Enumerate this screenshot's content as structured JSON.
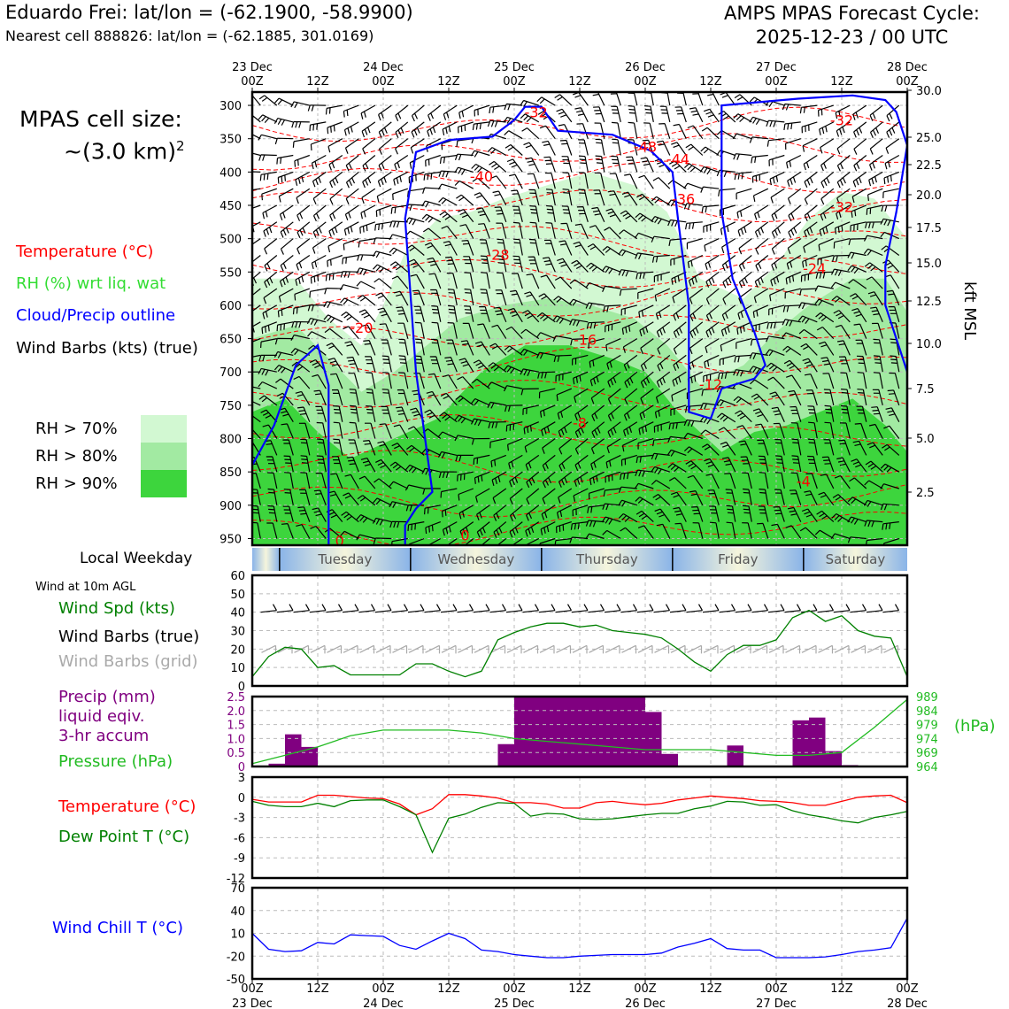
{
  "header": {
    "title_left": "Eduardo Frei: lat/lon = (-62.1900, -58.9900)",
    "subtitle_left": "Nearest cell 888826: lat/lon = (-62.1885, 301.0169)",
    "title_right_line1": "AMPS MPAS Forecast Cycle:",
    "title_right_line2": "2025-12-23 / 00 UTC",
    "cell_size_line1": "MPAS cell size:",
    "cell_size_line2": "~(3.0 km)",
    "cell_size_sup": "2"
  },
  "legend": {
    "temperature": "Temperature (°C)",
    "rh": "RH (%) wrt liq. wat",
    "cloud": "Cloud/Precip outline",
    "wind": "Wind Barbs (kts) (true)",
    "rh70": "RH > 70%",
    "rh80": "RH > 80%",
    "rh90": "RH > 90%"
  },
  "colors": {
    "rh70": "#d2f8d2",
    "rh80": "#a2eaa2",
    "rh90": "#3dd53d",
    "temperature": "#ff0000",
    "dewpoint": "#008000",
    "cloud": "#0000ff",
    "precip": "#800080",
    "pressure": "#22bb22",
    "windspeed": "#008000",
    "windchill": "#0000ff",
    "grid_barb": "#aaaaaa"
  },
  "axes": {
    "top_ticks": [
      {
        "hour": 0,
        "l1": "23 Dec",
        "l2": "00Z"
      },
      {
        "hour": 12,
        "l1": "",
        "l2": "12Z"
      },
      {
        "hour": 24,
        "l1": "24 Dec",
        "l2": "00Z"
      },
      {
        "hour": 36,
        "l1": "",
        "l2": "12Z"
      },
      {
        "hour": 48,
        "l1": "25 Dec",
        "l2": "00Z"
      },
      {
        "hour": 60,
        "l1": "",
        "l2": "12Z"
      },
      {
        "hour": 72,
        "l1": "26 Dec",
        "l2": "00Z"
      },
      {
        "hour": 84,
        "l1": "",
        "l2": "12Z"
      },
      {
        "hour": 96,
        "l1": "27 Dec",
        "l2": "00Z"
      },
      {
        "hour": 108,
        "l1": "",
        "l2": "12Z"
      },
      {
        "hour": 120,
        "l1": "28 Dec",
        "l2": "00Z"
      }
    ],
    "pressure_ticks": [
      "300",
      "350",
      "400",
      "450",
      "500",
      "550",
      "600",
      "650",
      "700",
      "750",
      "800",
      "850",
      "900",
      "950"
    ],
    "kft_ticks": [
      "30.0",
      "25.0",
      "22.5",
      "20.0",
      "17.5",
      "15.0",
      "12.5",
      "10.0",
      "7.5",
      "5.0",
      "2.5"
    ],
    "kft_label": "kft MSL"
  },
  "weekday": {
    "title": "Local Weekday",
    "days": [
      "Tuesday",
      "Wednesday",
      "Thursday",
      "Friday",
      "Saturday"
    ]
  },
  "wind_panel": {
    "title": "Wind at 10m AGL",
    "label_speed": "Wind Spd (kts)",
    "label_barbs_true": "Wind Barbs (true)",
    "label_barbs_grid": "Wind Barbs (grid)",
    "yticks": [
      "0",
      "10",
      "20",
      "30",
      "40",
      "50",
      "60"
    ]
  },
  "precip_panel": {
    "label1": "Precip (mm)",
    "label2": "liquid eqiv.",
    "label3": "3-hr accum",
    "label_pressure": "Pressure (hPa)",
    "unit_right": "(hPa)",
    "yticks_left": [
      "0",
      "0.5",
      "1.0",
      "1.5",
      "2.0",
      "2.5"
    ],
    "yticks_right": [
      "964",
      "969",
      "974",
      "979",
      "984",
      "989"
    ]
  },
  "temp_panel": {
    "label_temp": "Temperature (°C)",
    "label_dew": "Dew Point T (°C)",
    "yticks": [
      "3",
      "0",
      "-3",
      "-6",
      "-9",
      "-12"
    ]
  },
  "chill_panel": {
    "label": "Wind Chill T (°C)",
    "yticks": [
      "70",
      "40",
      "10",
      "-20",
      "-50"
    ]
  },
  "chart_data": [
    {
      "type": "heatmap",
      "name": "time-height cross section",
      "x_unit": "hours from 2025-12-23 00Z",
      "y_unit": "hPa",
      "ylim": [
        960,
        280
      ],
      "temperature_contour_labels": [
        {
          "value": "-32",
          "hour": 52,
          "p": 310
        },
        {
          "value": "-32",
          "hour": 108,
          "p": 322
        },
        {
          "value": "-48",
          "hour": 72,
          "p": 362
        },
        {
          "value": "-44",
          "hour": 78,
          "p": 380
        },
        {
          "value": "-40",
          "hour": 42,
          "p": 406
        },
        {
          "value": "-36",
          "hour": 79,
          "p": 440
        },
        {
          "value": "-32",
          "hour": 108,
          "p": 452
        },
        {
          "value": "-28",
          "hour": 45,
          "p": 524
        },
        {
          "value": "-24",
          "hour": 103,
          "p": 544
        },
        {
          "value": "-20",
          "hour": 20,
          "p": 633
        },
        {
          "value": "-16",
          "hour": 61,
          "p": 651
        },
        {
          "value": "-12",
          "hour": 84,
          "p": 718
        },
        {
          "value": "-8",
          "hour": 60,
          "p": 776
        },
        {
          "value": "-4",
          "hour": 101,
          "p": 864
        },
        {
          "value": "0",
          "hour": 16,
          "p": 953
        },
        {
          "value": "0",
          "hour": 39,
          "p": 945
        }
      ],
      "rh_regions": [
        {
          "level": "rh70",
          "pts": [
            [
              0,
              560
            ],
            [
              8,
              560
            ],
            [
              14,
              620
            ],
            [
              20,
              660
            ],
            [
              24,
              600
            ],
            [
              28,
              520
            ],
            [
              34,
              470
            ],
            [
              40,
              460
            ],
            [
              46,
              440
            ],
            [
              54,
              420
            ],
            [
              62,
              400
            ],
            [
              70,
              420
            ],
            [
              76,
              460
            ],
            [
              82,
              560
            ],
            [
              90,
              590
            ],
            [
              96,
              540
            ],
            [
              102,
              470
            ],
            [
              108,
              430
            ],
            [
              114,
              440
            ],
            [
              120,
              500
            ],
            [
              120,
              960
            ],
            [
              0,
              960
            ]
          ]
        },
        {
          "level": "rh80",
          "pts": [
            [
              0,
              650
            ],
            [
              8,
              630
            ],
            [
              14,
              680
            ],
            [
              20,
              730
            ],
            [
              26,
              700
            ],
            [
              32,
              660
            ],
            [
              38,
              620
            ],
            [
              46,
              600
            ],
            [
              54,
              590
            ],
            [
              62,
              600
            ],
            [
              70,
              620
            ],
            [
              76,
              660
            ],
            [
              82,
              720
            ],
            [
              90,
              690
            ],
            [
              96,
              640
            ],
            [
              102,
              600
            ],
            [
              110,
              560
            ],
            [
              116,
              560
            ],
            [
              120,
              610
            ],
            [
              120,
              960
            ],
            [
              0,
              960
            ]
          ]
        },
        {
          "level": "rh90",
          "pts": [
            [
              0,
              760
            ],
            [
              6,
              740
            ],
            [
              12,
              790
            ],
            [
              18,
              830
            ],
            [
              26,
              800
            ],
            [
              34,
              770
            ],
            [
              42,
              700
            ],
            [
              50,
              660
            ],
            [
              58,
              660
            ],
            [
              66,
              680
            ],
            [
              72,
              700
            ],
            [
              78,
              760
            ],
            [
              86,
              820
            ],
            [
              92,
              790
            ],
            [
              98,
              780
            ],
            [
              104,
              760
            ],
            [
              110,
              740
            ],
            [
              116,
              780
            ],
            [
              120,
              820
            ],
            [
              120,
              960
            ],
            [
              0,
              960
            ]
          ]
        }
      ],
      "cloud_outline": [
        [
          [
            0,
            840
          ],
          [
            4,
            780
          ],
          [
            8,
            690
          ],
          [
            12,
            660
          ],
          [
            14,
            720
          ],
          [
            14,
            960
          ]
        ],
        [
          [
            28,
            960
          ],
          [
            28,
            930
          ],
          [
            30,
            905
          ],
          [
            33,
            880
          ],
          [
            30,
            700
          ],
          [
            28,
            470
          ],
          [
            30,
            370
          ],
          [
            36,
            352
          ],
          [
            44,
            347
          ],
          [
            48,
            322
          ],
          [
            50,
            302
          ],
          [
            53,
            302
          ],
          [
            56,
            338
          ],
          [
            66,
            344
          ],
          [
            73,
            368
          ],
          [
            77,
            400
          ],
          [
            78,
            470
          ],
          [
            80,
            600
          ],
          [
            80,
            760
          ],
          [
            84,
            770
          ],
          [
            86,
            725
          ],
          [
            92,
            710
          ],
          [
            94,
            690
          ],
          [
            92,
            640
          ],
          [
            88,
            560
          ],
          [
            86,
            460
          ],
          [
            86,
            390
          ],
          [
            86,
            300
          ],
          [
            100,
            290
          ],
          [
            110,
            285
          ],
          [
            116,
            292
          ],
          [
            118,
            310
          ],
          [
            120,
            360
          ],
          [
            118,
            460
          ],
          [
            116,
            540
          ],
          [
            116,
            600
          ],
          [
            118,
            650
          ],
          [
            120,
            700
          ],
          [
            120,
            960
          ]
        ]
      ]
    },
    {
      "type": "line",
      "name": "Wind Spd (kts)",
      "x": [
        0,
        3,
        6,
        9,
        12,
        15,
        18,
        21,
        24,
        27,
        30,
        33,
        36,
        39,
        42,
        45,
        48,
        51,
        54,
        57,
        60,
        63,
        66,
        69,
        72,
        75,
        78,
        81,
        84,
        87,
        90,
        93,
        96,
        99,
        102,
        105,
        108,
        111,
        114,
        117,
        120
      ],
      "values": [
        5,
        16,
        21,
        20,
        10,
        11,
        6,
        6,
        6,
        6,
        12,
        12,
        8,
        5,
        8,
        25,
        29,
        32,
        34,
        34,
        32,
        33,
        30,
        29,
        28,
        26,
        20,
        13,
        8,
        17,
        22,
        22,
        25,
        37,
        41,
        35,
        38,
        30,
        27,
        26,
        5
      ],
      "ylim": [
        0,
        60
      ]
    },
    {
      "type": "bar",
      "name": "Precip (mm) 3-hr accum",
      "bar_end_hours": [
        3,
        6,
        9,
        12,
        15,
        18,
        21,
        24,
        27,
        30,
        33,
        36,
        39,
        42,
        45,
        48,
        51,
        54,
        57,
        60,
        63,
        66,
        69,
        72,
        75,
        78,
        81,
        84,
        87,
        90,
        93,
        96,
        99,
        102,
        105,
        108,
        111,
        114,
        117,
        120
      ],
      "values": [
        0,
        0.1,
        1.15,
        0.7,
        0,
        0,
        0,
        0,
        0,
        0,
        0,
        0,
        0,
        0,
        0,
        0.8,
        2.5,
        2.5,
        2.5,
        2.5,
        2.5,
        2.5,
        2.5,
        2.5,
        1.95,
        0.45,
        0,
        0,
        0,
        0.75,
        0,
        0,
        0,
        1.65,
        1.75,
        0.55,
        0.05,
        0,
        0,
        0
      ],
      "ylim": [
        0,
        2.5
      ]
    },
    {
      "type": "line",
      "name": "Pressure (hPa)",
      "x": [
        0,
        6,
        12,
        18,
        24,
        30,
        36,
        42,
        48,
        54,
        60,
        66,
        72,
        78,
        84,
        90,
        96,
        102,
        108,
        114,
        120
      ],
      "values": [
        965,
        968,
        971,
        975,
        977,
        977,
        977,
        976,
        974,
        973,
        972,
        971,
        970,
        970,
        970,
        969,
        968,
        968,
        969,
        978,
        988
      ],
      "ylim": [
        964,
        989
      ]
    },
    {
      "type": "line",
      "name": "Temperature (°C)",
      "x": [
        0,
        3,
        6,
        9,
        12,
        15,
        18,
        21,
        24,
        27,
        30,
        33,
        36,
        39,
        42,
        45,
        48,
        51,
        54,
        57,
        60,
        63,
        66,
        69,
        72,
        75,
        78,
        81,
        84,
        87,
        90,
        93,
        96,
        99,
        102,
        105,
        108,
        111,
        114,
        117,
        120
      ],
      "values": [
        -0.3,
        -0.7,
        -0.7,
        -0.7,
        0.3,
        0.3,
        0.1,
        -0.1,
        -0.2,
        -1,
        -2.6,
        -1.7,
        0.4,
        0.4,
        0.2,
        -0.1,
        -0.8,
        -0.8,
        -1,
        -1.6,
        -1.6,
        -0.8,
        -0.6,
        -0.9,
        -1.1,
        -0.9,
        -0.4,
        -0.1,
        0.2,
        0,
        -0.2,
        -0.5,
        -0.6,
        -0.8,
        -1.2,
        -1.2,
        -0.6,
        0,
        0.2,
        0.3,
        -0.8
      ],
      "ylim": [
        -12,
        3
      ]
    },
    {
      "type": "line",
      "name": "Dew Point T (°C)",
      "x": [
        0,
        3,
        6,
        9,
        12,
        15,
        18,
        21,
        24,
        27,
        30,
        33,
        36,
        39,
        42,
        45,
        48,
        51,
        54,
        57,
        60,
        63,
        66,
        69,
        72,
        75,
        78,
        81,
        84,
        87,
        90,
        93,
        96,
        99,
        102,
        105,
        108,
        111,
        114,
        117,
        120
      ],
      "values": [
        -0.6,
        -1.2,
        -1.4,
        -1.4,
        -0.9,
        -1.4,
        -0.5,
        -0.4,
        -0.4,
        -1.4,
        -2.6,
        -8.2,
        -3.1,
        -2.5,
        -1.5,
        -0.8,
        -0.9,
        -2.8,
        -2.4,
        -2.5,
        -3.2,
        -3.3,
        -3.2,
        -2.9,
        -2.6,
        -2.4,
        -2.4,
        -1.7,
        -1.3,
        -0.6,
        -0.7,
        -1.2,
        -1.1,
        -2,
        -2.6,
        -3,
        -3.5,
        -3.8,
        -3,
        -2.6,
        -2.1
      ],
      "ylim": [
        -12,
        3
      ]
    },
    {
      "type": "line",
      "name": "Wind Chill T (°C)",
      "x": [
        0,
        3,
        6,
        9,
        12,
        15,
        18,
        21,
        24,
        27,
        30,
        33,
        36,
        39,
        42,
        45,
        48,
        51,
        54,
        57,
        60,
        63,
        66,
        69,
        72,
        75,
        78,
        81,
        84,
        87,
        90,
        93,
        96,
        99,
        102,
        105,
        108,
        111,
        114,
        117,
        120
      ],
      "values": [
        10,
        -11,
        -14,
        -13,
        -2,
        -4,
        8,
        7,
        6,
        -6,
        -11,
        0,
        10,
        3,
        -12,
        -14,
        -18,
        -20,
        -22,
        -22,
        -20,
        -19,
        -18,
        -18,
        -18,
        -16,
        -8,
        -3,
        3,
        -10,
        -12,
        -12,
        -22,
        -22,
        -22,
        -21,
        -18,
        -14,
        -12,
        -9,
        30
      ],
      "ylim": [
        -50,
        70
      ]
    }
  ]
}
